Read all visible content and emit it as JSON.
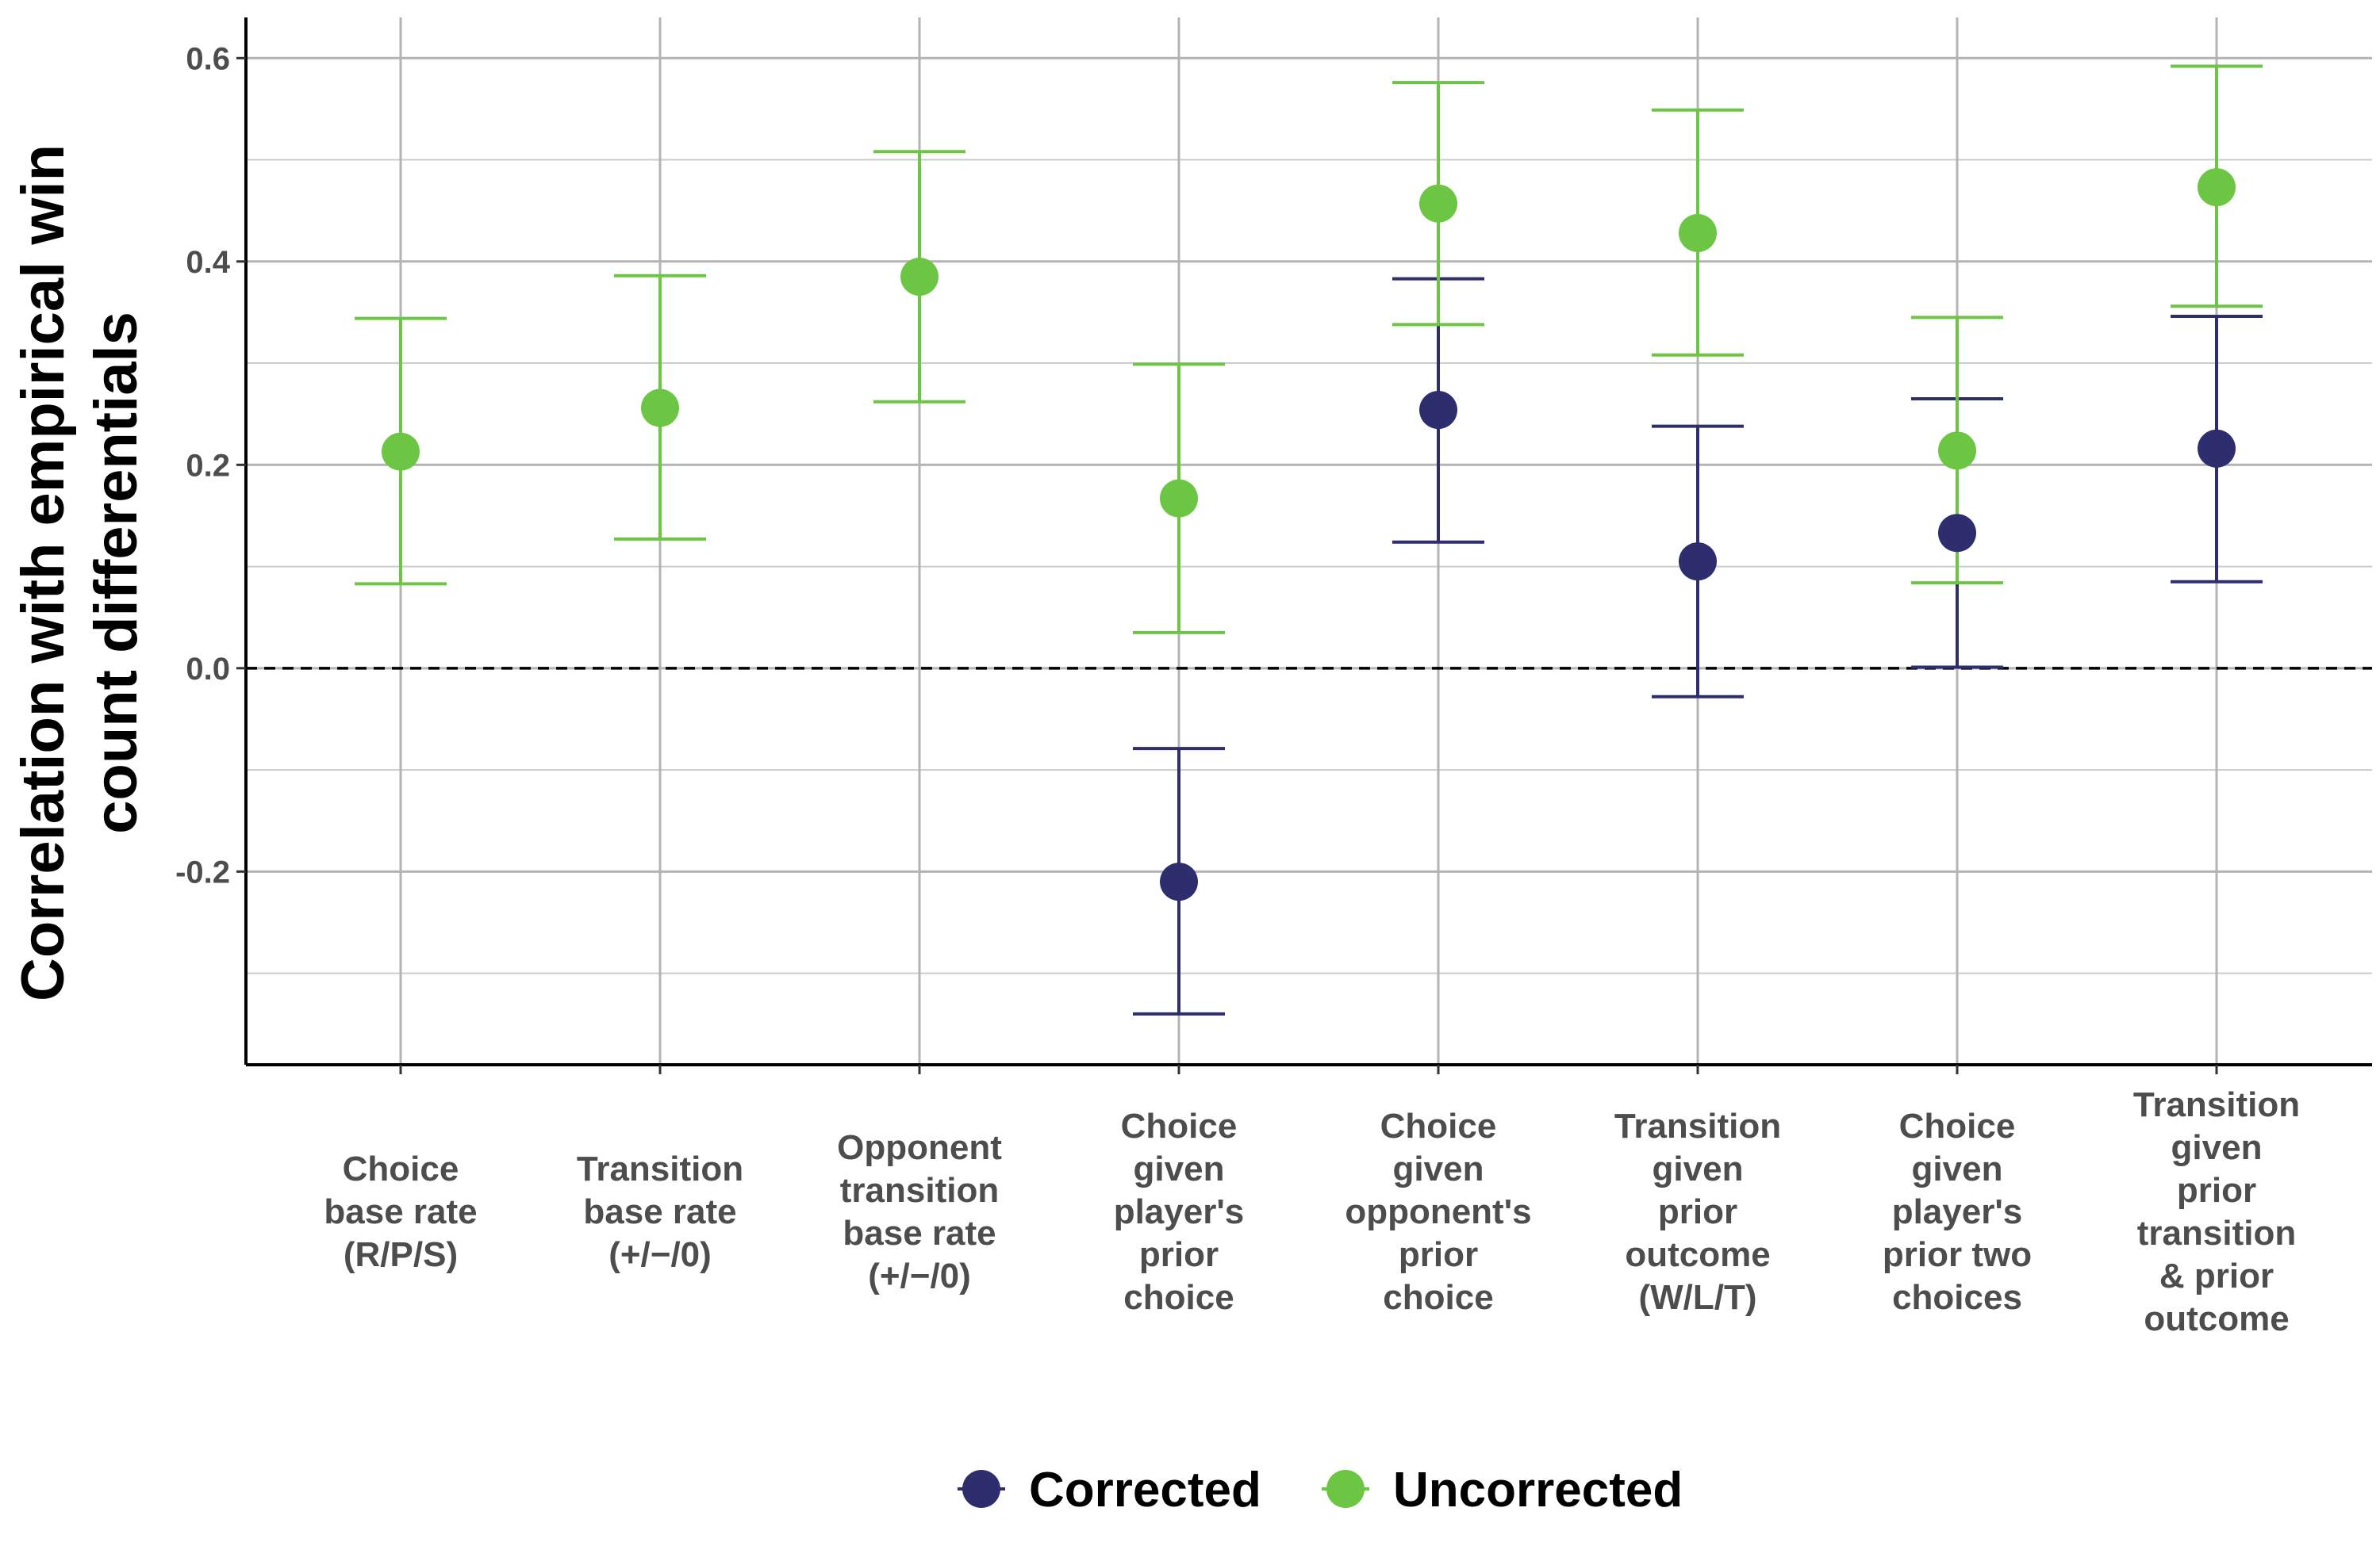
{
  "chart_data": {
    "type": "scatter",
    "title": "",
    "xlabel": "",
    "ylabel": "Correlation with empirical win count differentials",
    "ylabel_lines": [
      "Correlation with empirical win",
      "count differentials"
    ],
    "ylim": [
      -0.39,
      0.64
    ],
    "yticks": [
      -0.2,
      0.0,
      0.2,
      0.4,
      0.6
    ],
    "ytick_labels": [
      "-0.2",
      "0.0",
      "0.2",
      "0.4",
      "0.6"
    ],
    "grid": true,
    "reference_line": {
      "y": 0.0,
      "style": "dashed"
    },
    "legend_position": "bottom",
    "categories": [
      [
        "Choice",
        "base rate",
        "(R/P/S)"
      ],
      [
        "Transition",
        "base rate",
        "(+/−/0)"
      ],
      [
        "Opponent",
        "transition",
        "base rate",
        "(+/−/0)"
      ],
      [
        "Choice",
        "given",
        "player's",
        "prior",
        "choice"
      ],
      [
        "Choice",
        "given",
        "opponent's",
        "prior",
        "choice"
      ],
      [
        "Transition",
        "given",
        "prior",
        "outcome",
        "(W/L/T)"
      ],
      [
        "Choice",
        "given",
        "player's",
        "prior two",
        "choices"
      ],
      [
        "Transition",
        "given",
        "prior",
        "transition",
        "& prior",
        "outcome"
      ]
    ],
    "series": [
      {
        "name": "Corrected",
        "color": "#2e2e6e",
        "points": [
          null,
          null,
          null,
          {
            "y": -0.21,
            "lo": -0.34,
            "hi": -0.079
          },
          {
            "y": 0.254,
            "lo": 0.124,
            "hi": 0.383
          },
          {
            "y": 0.105,
            "lo": -0.028,
            "hi": 0.238
          },
          {
            "y": 0.133,
            "lo": 0.001,
            "hi": 0.265
          },
          {
            "y": 0.216,
            "lo": 0.085,
            "hi": 0.346
          }
        ]
      },
      {
        "name": "Uncorrected",
        "color": "#6cc644",
        "points": [
          {
            "y": 0.213,
            "lo": 0.083,
            "hi": 0.344
          },
          {
            "y": 0.256,
            "lo": 0.127,
            "hi": 0.386
          },
          {
            "y": 0.385,
            "lo": 0.262,
            "hi": 0.508
          },
          {
            "y": 0.167,
            "lo": 0.035,
            "hi": 0.299
          },
          {
            "y": 0.457,
            "lo": 0.338,
            "hi": 0.576
          },
          {
            "y": 0.428,
            "lo": 0.308,
            "hi": 0.549
          },
          {
            "y": 0.214,
            "lo": 0.084,
            "hi": 0.345
          },
          {
            "y": 0.473,
            "lo": 0.356,
            "hi": 0.592
          }
        ]
      }
    ]
  }
}
